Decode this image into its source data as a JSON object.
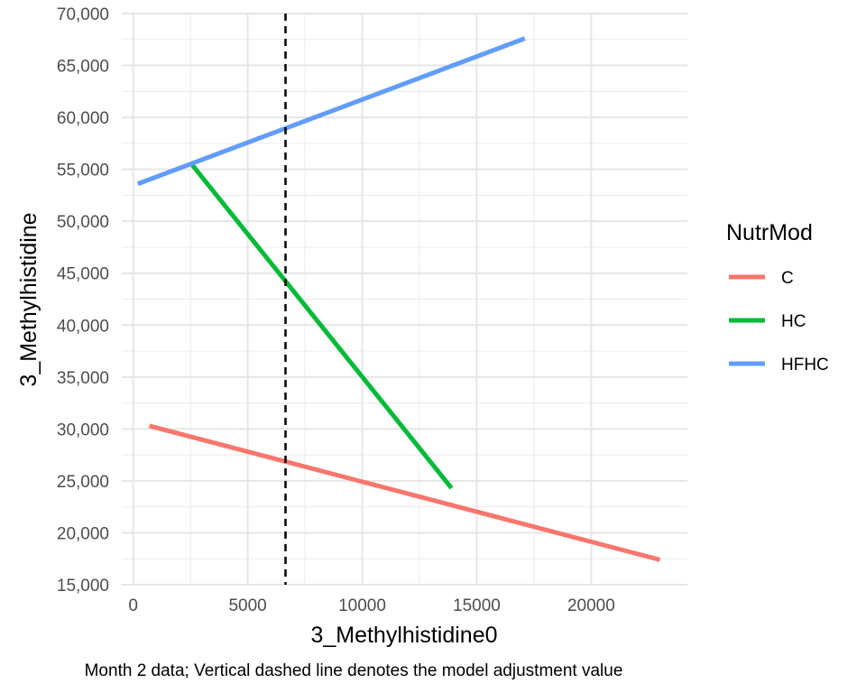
{
  "chart_data": {
    "type": "line",
    "xlabel": "3_Methylhistidine0",
    "ylabel": "3_Methylhistidine",
    "caption": "Month 2 data; Vertical dashed line denotes the model adjustment value",
    "xlim": [
      -500,
      24200
    ],
    "ylim": [
      15000,
      70000
    ],
    "x_ticks": [
      0,
      5000,
      10000,
      15000,
      20000
    ],
    "x_tick_labels": [
      "0",
      "5000",
      "10000",
      "15000",
      "20000"
    ],
    "y_ticks": [
      15000,
      20000,
      25000,
      30000,
      35000,
      40000,
      45000,
      50000,
      55000,
      60000,
      65000,
      70000
    ],
    "y_tick_labels": [
      "15,000",
      "20,000",
      "25,000",
      "30,000",
      "35,000",
      "40,000",
      "45,000",
      "50,000",
      "55,000",
      "60,000",
      "65,000",
      "70,000"
    ],
    "grid": true,
    "legend": {
      "title": "NutrMod",
      "position": "right"
    },
    "vline": {
      "x": 6650,
      "style": "dashed",
      "color": "#000000"
    },
    "series": [
      {
        "name": "C",
        "color": "#F8766D",
        "x": [
          700,
          23000
        ],
        "y": [
          30300,
          17400
        ]
      },
      {
        "name": "HC",
        "color": "#00BA38",
        "x": [
          2550,
          13900
        ],
        "y": [
          55500,
          24300
        ]
      },
      {
        "name": "HFHC",
        "color": "#619CFF",
        "x": [
          200,
          17100
        ],
        "y": [
          53600,
          67600
        ]
      }
    ]
  }
}
